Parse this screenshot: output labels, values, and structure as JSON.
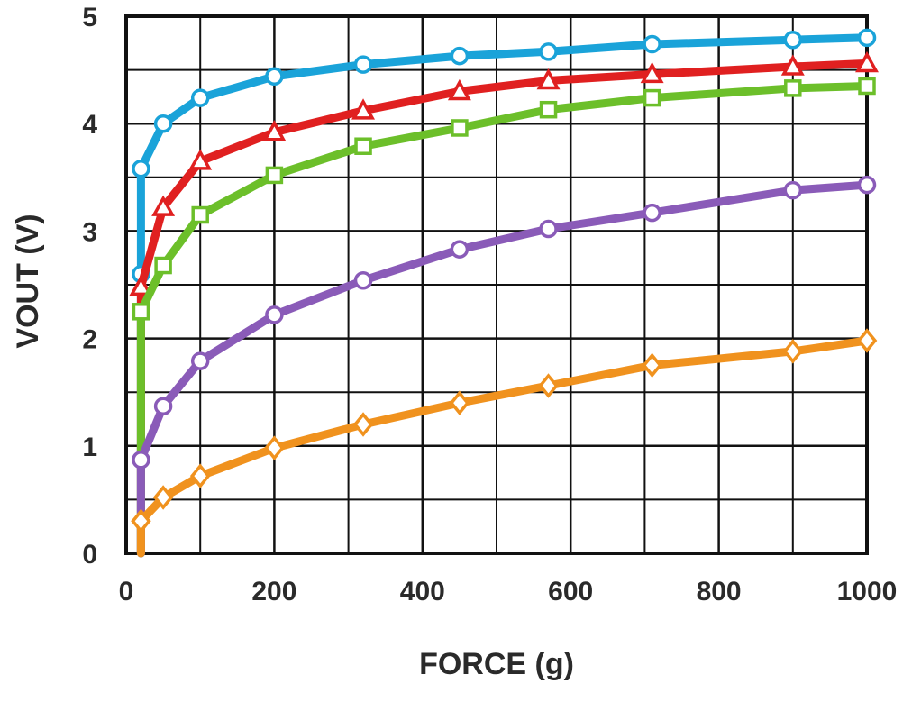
{
  "chart_data": {
    "type": "line",
    "title": "",
    "xlabel": "FORCE (g)",
    "ylabel": "VOUT (V)",
    "xlim": [
      0,
      1000
    ],
    "ylim": [
      0,
      5
    ],
    "x_ticks": [
      "0",
      "200",
      "400",
      "600",
      "800",
      "1000"
    ],
    "y_ticks": [
      "0",
      "1",
      "2",
      "3",
      "4",
      "5"
    ],
    "x_minor_gridlines": [
      100,
      300,
      500,
      700,
      900
    ],
    "y_minor_gridlines": [
      0.5,
      1.5,
      2.5,
      3.5,
      4.5
    ],
    "grid": true,
    "legend": "none",
    "series": [
      {
        "color": "#1aa3d9",
        "marker": "circle",
        "points": [
          [
            20,
            0.0
          ],
          [
            20,
            2.6
          ],
          [
            20,
            3.58
          ],
          [
            50,
            4.0
          ],
          [
            100,
            4.24
          ],
          [
            200,
            4.44
          ],
          [
            320,
            4.55
          ],
          [
            450,
            4.63
          ],
          [
            570,
            4.67
          ],
          [
            710,
            4.74
          ],
          [
            900,
            4.78
          ],
          [
            1000,
            4.8
          ]
        ]
      },
      {
        "color": "#e02020",
        "marker": "triangle",
        "points": [
          [
            20,
            0.0
          ],
          [
            20,
            2.48
          ],
          [
            50,
            3.22
          ],
          [
            100,
            3.65
          ],
          [
            200,
            3.92
          ],
          [
            320,
            4.12
          ],
          [
            450,
            4.3
          ],
          [
            570,
            4.4
          ],
          [
            710,
            4.46
          ],
          [
            900,
            4.53
          ],
          [
            1000,
            4.56
          ]
        ]
      },
      {
        "color": "#6cbf2a",
        "marker": "square",
        "points": [
          [
            20,
            0.0
          ],
          [
            20,
            2.25
          ],
          [
            50,
            2.68
          ],
          [
            100,
            3.15
          ],
          [
            200,
            3.52
          ],
          [
            320,
            3.79
          ],
          [
            450,
            3.96
          ],
          [
            570,
            4.13
          ],
          [
            710,
            4.24
          ],
          [
            900,
            4.33
          ],
          [
            1000,
            4.35
          ]
        ]
      },
      {
        "color": "#8a5bb8",
        "marker": "circle",
        "points": [
          [
            20,
            0.0
          ],
          [
            20,
            0.87
          ],
          [
            50,
            1.37
          ],
          [
            100,
            1.79
          ],
          [
            200,
            2.22
          ],
          [
            320,
            2.54
          ],
          [
            450,
            2.83
          ],
          [
            570,
            3.02
          ],
          [
            710,
            3.17
          ],
          [
            900,
            3.38
          ],
          [
            1000,
            3.43
          ]
        ]
      },
      {
        "color": "#f0921e",
        "marker": "diamond",
        "points": [
          [
            20,
            0.0
          ],
          [
            20,
            0.3
          ],
          [
            50,
            0.52
          ],
          [
            100,
            0.72
          ],
          [
            200,
            0.98
          ],
          [
            320,
            1.2
          ],
          [
            450,
            1.4
          ],
          [
            570,
            1.56
          ],
          [
            710,
            1.75
          ],
          [
            900,
            1.88
          ],
          [
            1000,
            1.98
          ]
        ]
      }
    ]
  }
}
